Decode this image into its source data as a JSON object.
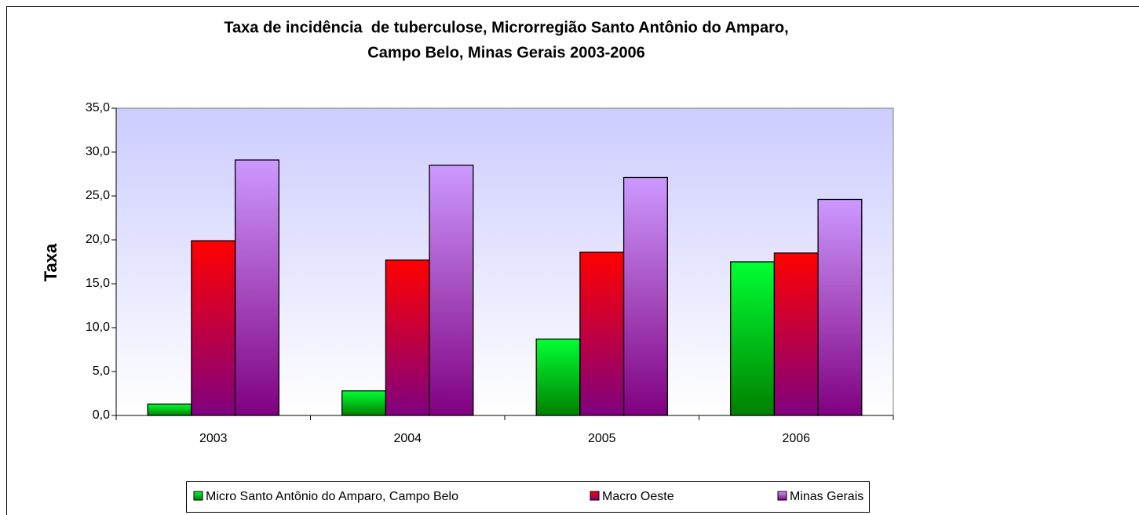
{
  "chart_data": {
    "type": "bar",
    "title": [
      "Taxa de incidência  de tuberculose, Microrregião Santo Antônio do Amparo,",
      "Campo Belo, Minas Gerais 2003-2006"
    ],
    "y_label": "Taxa",
    "categories": [
      "2003",
      "2004",
      "2005",
      "2006"
    ],
    "series": [
      {
        "name": "Micro Santo Antônio do Amparo, Campo Belo",
        "color": "#00ff33",
        "values": [
          1.3,
          2.8,
          8.7,
          17.5
        ]
      },
      {
        "name": "Macro Oeste",
        "color": "#ff0000",
        "values": [
          19.9,
          17.7,
          18.6,
          18.5
        ]
      },
      {
        "name": "Minas Gerais",
        "color": "#cc99ff",
        "values": [
          29.1,
          28.5,
          27.1,
          24.6
        ]
      }
    ],
    "ylim": [
      0,
      35
    ],
    "yticks": [
      {
        "value": 0,
        "label": "0,0"
      },
      {
        "value": 5,
        "label": "5,0"
      },
      {
        "value": 10,
        "label": "10,0"
      },
      {
        "value": 15,
        "label": "15,0"
      },
      {
        "value": 20,
        "label": "20,0"
      },
      {
        "value": 25,
        "label": "25,0"
      },
      {
        "value": 30,
        "label": "30,0"
      },
      {
        "value": 35,
        "label": "35,0"
      }
    ],
    "legend": "bottom"
  }
}
